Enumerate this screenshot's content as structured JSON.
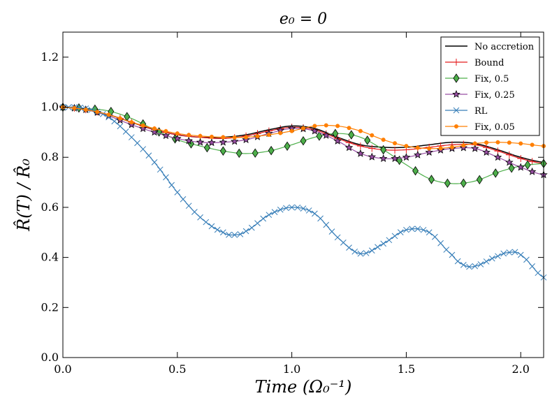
{
  "chart_data": {
    "type": "line",
    "title": "e₀ = 0",
    "xlabel": "Time (Ω₀⁻¹)",
    "ylabel": "R̂(T) / R̂₀",
    "xlim": [
      0.0,
      2.1
    ],
    "ylim": [
      0.0,
      1.3
    ],
    "xticks": [
      "0.0",
      "0.5",
      "1.0",
      "1.5",
      "2.0"
    ],
    "xtick_values": [
      0.0,
      0.5,
      1.0,
      1.5,
      2.0
    ],
    "yticks": [
      "0.0",
      "0.2",
      "0.4",
      "0.6",
      "0.8",
      "1.0",
      "1.2"
    ],
    "ytick_values": [
      0.0,
      0.2,
      0.4,
      0.6,
      0.8,
      1.0,
      1.2
    ],
    "grid": false,
    "legend_position": "top-right",
    "series": [
      {
        "name": "No accretion",
        "color": "#000000",
        "marker": "none",
        "x": [
          0.0,
          0.1,
          0.2,
          0.3,
          0.4,
          0.5,
          0.6,
          0.7,
          0.8,
          0.9,
          1.0,
          1.1,
          1.2,
          1.3,
          1.4,
          1.5,
          1.6,
          1.7,
          1.8,
          1.9,
          2.0,
          2.1
        ],
        "y": [
          1.0,
          0.99,
          0.97,
          0.94,
          0.91,
          0.89,
          0.88,
          0.88,
          0.89,
          0.91,
          0.925,
          0.915,
          0.88,
          0.85,
          0.84,
          0.84,
          0.85,
          0.86,
          0.855,
          0.83,
          0.8,
          0.78
        ]
      },
      {
        "name": "Bound",
        "color": "#e41a1c",
        "marker": "plus",
        "x": [
          0.0,
          0.1,
          0.2,
          0.3,
          0.4,
          0.5,
          0.6,
          0.7,
          0.8,
          0.9,
          1.0,
          1.1,
          1.2,
          1.3,
          1.4,
          1.5,
          1.6,
          1.7,
          1.8,
          1.9,
          2.0,
          2.1
        ],
        "y": [
          1.0,
          0.99,
          0.97,
          0.94,
          0.91,
          0.89,
          0.88,
          0.875,
          0.885,
          0.905,
          0.92,
          0.91,
          0.875,
          0.845,
          0.83,
          0.83,
          0.84,
          0.85,
          0.85,
          0.825,
          0.795,
          0.775
        ]
      },
      {
        "name": "Fix, 0.5",
        "color": "#4daf4a",
        "marker": "diamond",
        "x": [
          0.0,
          0.1,
          0.2,
          0.3,
          0.4,
          0.5,
          0.6,
          0.7,
          0.8,
          0.9,
          1.0,
          1.1,
          1.2,
          1.3,
          1.4,
          1.5,
          1.6,
          1.7,
          1.8,
          1.9,
          2.0,
          2.1
        ],
        "y": [
          1.0,
          0.995,
          0.985,
          0.955,
          0.91,
          0.87,
          0.845,
          0.825,
          0.815,
          0.825,
          0.85,
          0.88,
          0.895,
          0.88,
          0.83,
          0.77,
          0.715,
          0.695,
          0.705,
          0.74,
          0.765,
          0.775
        ]
      },
      {
        "name": "Fix, 0.25",
        "color": "#984ea3",
        "marker": "star",
        "x": [
          0.0,
          0.1,
          0.2,
          0.3,
          0.4,
          0.5,
          0.6,
          0.7,
          0.8,
          0.9,
          1.0,
          1.1,
          1.2,
          1.3,
          1.4,
          1.5,
          1.6,
          1.7,
          1.8,
          1.9,
          2.0,
          2.1
        ],
        "y": [
          1.0,
          0.99,
          0.965,
          0.93,
          0.9,
          0.875,
          0.86,
          0.86,
          0.87,
          0.895,
          0.915,
          0.905,
          0.865,
          0.815,
          0.795,
          0.8,
          0.82,
          0.835,
          0.835,
          0.8,
          0.76,
          0.73
        ]
      },
      {
        "name": "RL",
        "color": "#377eb8",
        "marker": "x",
        "x": [
          0.0,
          0.1,
          0.2,
          0.3,
          0.4,
          0.5,
          0.6,
          0.7,
          0.75,
          0.8,
          0.9,
          1.0,
          1.1,
          1.2,
          1.3,
          1.4,
          1.5,
          1.6,
          1.7,
          1.75,
          1.8,
          1.9,
          1.95,
          2.0,
          2.1
        ],
        "y": [
          1.0,
          0.995,
          0.96,
          0.88,
          0.78,
          0.66,
          0.56,
          0.5,
          0.49,
          0.505,
          0.57,
          0.6,
          0.575,
          0.48,
          0.415,
          0.455,
          0.51,
          0.5,
          0.41,
          0.37,
          0.365,
          0.405,
          0.42,
          0.41,
          0.32
        ]
      },
      {
        "name": "Fix, 0.05",
        "color": "#ff7f00",
        "marker": "dot",
        "x": [
          0.0,
          0.1,
          0.2,
          0.3,
          0.4,
          0.5,
          0.6,
          0.7,
          0.8,
          0.9,
          1.0,
          1.1,
          1.2,
          1.3,
          1.4,
          1.5,
          1.6,
          1.7,
          1.8,
          1.9,
          2.0,
          2.1
        ],
        "y": [
          1.0,
          0.99,
          0.97,
          0.94,
          0.915,
          0.895,
          0.885,
          0.88,
          0.88,
          0.89,
          0.905,
          0.925,
          0.925,
          0.905,
          0.87,
          0.845,
          0.835,
          0.84,
          0.855,
          0.86,
          0.855,
          0.845
        ]
      }
    ]
  }
}
